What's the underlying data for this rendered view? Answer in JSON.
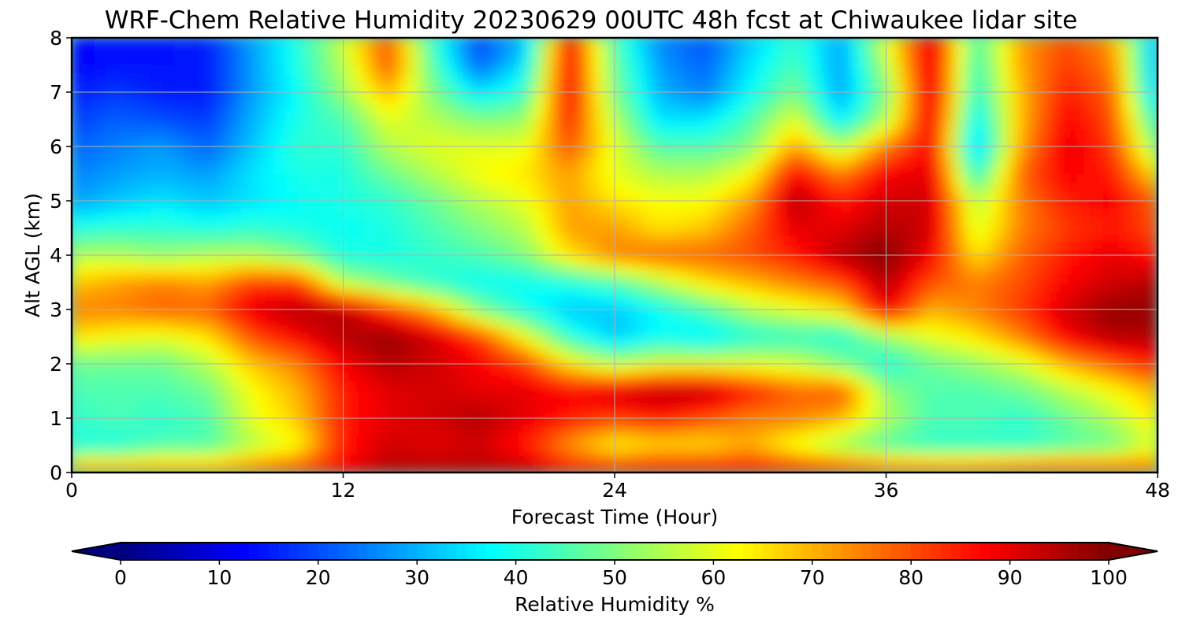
{
  "chart_data": {
    "type": "heatmap",
    "title": "WRF-Chem Relative Humidity 20230629 00UTC 48h fcst at Chiwaukee lidar site",
    "xlabel": "Forecast Time (Hour)",
    "ylabel": "Alt AGL (km)",
    "xlim": [
      0,
      48
    ],
    "ylim": [
      0,
      8
    ],
    "x_ticks": [
      0,
      12,
      24,
      36,
      48
    ],
    "y_ticks": [
      0,
      1,
      2,
      3,
      4,
      5,
      6,
      7,
      8
    ],
    "grid": true,
    "colorbar": {
      "label": "Relative Humidity %",
      "colormap": "jet",
      "range": [
        0,
        100
      ],
      "ticks": [
        0,
        10,
        20,
        30,
        40,
        50,
        60,
        70,
        80,
        90,
        100
      ],
      "orientation": "horizontal",
      "extend": "both"
    },
    "x": [
      0,
      2,
      4,
      6,
      8,
      10,
      12,
      14,
      16,
      18,
      20,
      22,
      24,
      26,
      28,
      30,
      32,
      34,
      36,
      38,
      40,
      42,
      44,
      46,
      48
    ],
    "y": [
      0,
      0.5,
      1,
      1.5,
      2,
      2.5,
      3,
      3.5,
      4,
      4.5,
      5,
      5.5,
      6,
      6.5,
      7,
      7.5,
      8
    ],
    "z": [
      [
        78,
        78,
        78,
        78,
        80,
        84,
        88,
        95,
        95,
        95,
        95,
        90,
        90,
        92,
        92,
        90,
        90,
        88,
        85,
        85,
        85,
        88,
        88,
        85,
        80
      ],
      [
        40,
        40,
        45,
        45,
        55,
        62,
        85,
        92,
        90,
        92,
        85,
        72,
        62,
        65,
        65,
        70,
        60,
        52,
        45,
        42,
        42,
        42,
        45,
        48,
        60
      ],
      [
        42,
        45,
        42,
        45,
        60,
        68,
        85,
        90,
        92,
        95,
        90,
        85,
        82,
        85,
        80,
        75,
        75,
        70,
        55,
        45,
        45,
        42,
        48,
        55,
        65
      ],
      [
        45,
        45,
        45,
        48,
        62,
        70,
        85,
        90,
        92,
        90,
        90,
        88,
        92,
        95,
        95,
        85,
        78,
        80,
        52,
        45,
        45,
        48,
        55,
        62,
        70
      ],
      [
        48,
        48,
        48,
        55,
        68,
        75,
        88,
        95,
        92,
        88,
        82,
        65,
        55,
        60,
        60,
        60,
        58,
        50,
        40,
        48,
        52,
        58,
        70,
        78,
        85
      ],
      [
        65,
        62,
        60,
        65,
        80,
        88,
        95,
        98,
        92,
        82,
        62,
        42,
        32,
        38,
        35,
        40,
        42,
        40,
        52,
        60,
        65,
        75,
        88,
        95,
        95
      ],
      [
        75,
        75,
        78,
        78,
        90,
        95,
        95,
        82,
        70,
        50,
        40,
        32,
        32,
        38,
        45,
        55,
        60,
        65,
        90,
        70,
        75,
        82,
        92,
        98,
        98
      ],
      [
        68,
        72,
        75,
        72,
        82,
        82,
        55,
        48,
        42,
        38,
        38,
        40,
        45,
        55,
        65,
        70,
        75,
        80,
        95,
        80,
        75,
        80,
        88,
        92,
        95
      ],
      [
        55,
        55,
        52,
        55,
        55,
        50,
        40,
        40,
        42,
        45,
        50,
        65,
        75,
        78,
        78,
        80,
        85,
        95,
        100,
        88,
        65,
        78,
        85,
        90,
        85
      ],
      [
        40,
        42,
        42,
        40,
        42,
        40,
        38,
        40,
        45,
        50,
        55,
        72,
        72,
        65,
        68,
        78,
        90,
        90,
        95,
        92,
        58,
        75,
        82,
        85,
        80
      ],
      [
        28,
        32,
        35,
        32,
        35,
        38,
        40,
        42,
        48,
        55,
        60,
        72,
        65,
        62,
        62,
        72,
        95,
        85,
        92,
        92,
        55,
        75,
        85,
        88,
        78
      ],
      [
        25,
        28,
        30,
        28,
        35,
        40,
        40,
        48,
        55,
        62,
        65,
        72,
        60,
        55,
        55,
        62,
        88,
        75,
        88,
        90,
        40,
        78,
        88,
        85,
        65
      ],
      [
        22,
        25,
        28,
        22,
        32,
        42,
        42,
        55,
        60,
        60,
        60,
        80,
        60,
        45,
        45,
        50,
        72,
        55,
        75,
        88,
        30,
        72,
        90,
        82,
        50
      ],
      [
        18,
        22,
        20,
        18,
        30,
        40,
        45,
        60,
        55,
        50,
        52,
        85,
        55,
        35,
        35,
        45,
        60,
        35,
        55,
        90,
        35,
        70,
        88,
        80,
        40
      ],
      [
        15,
        18,
        15,
        15,
        28,
        38,
        52,
        70,
        50,
        35,
        42,
        88,
        50,
        30,
        25,
        38,
        50,
        28,
        50,
        92,
        40,
        70,
        85,
        78,
        30
      ],
      [
        12,
        14,
        14,
        15,
        28,
        40,
        55,
        80,
        45,
        22,
        35,
        88,
        48,
        28,
        22,
        35,
        45,
        28,
        55,
        92,
        42,
        72,
        82,
        75,
        28
      ],
      [
        12,
        14,
        14,
        15,
        28,
        40,
        58,
        80,
        42,
        18,
        30,
        88,
        45,
        25,
        20,
        32,
        42,
        28,
        60,
        92,
        45,
        72,
        80,
        72,
        28
      ]
    ]
  }
}
